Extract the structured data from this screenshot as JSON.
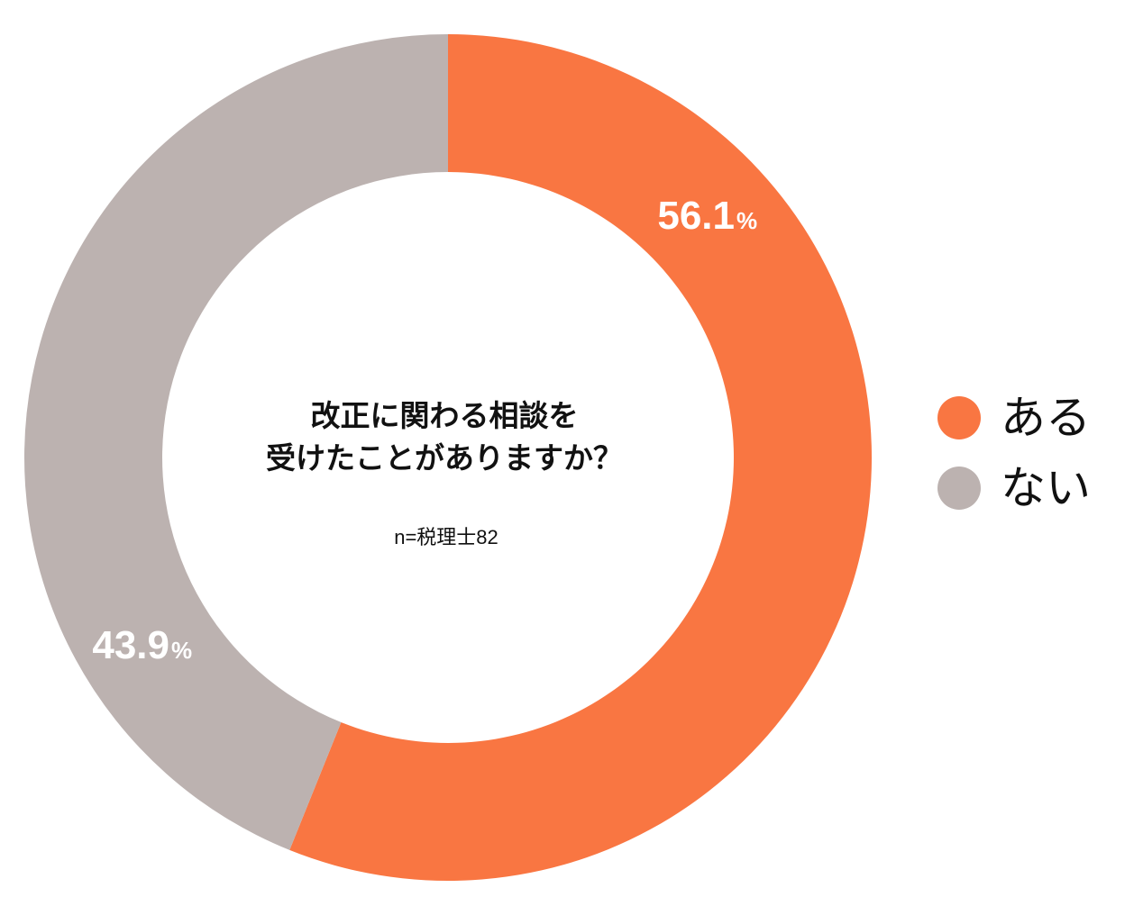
{
  "chart_data": {
    "type": "pie",
    "variant": "donut",
    "center_title_lines": [
      "改正に関わる相談を",
      "受けたことがありますか？"
    ],
    "note": "n=税理士82",
    "series": [
      {
        "name": "ある",
        "value": 56.1,
        "value_text": "56.1",
        "unit": "%",
        "color": "#F97642"
      },
      {
        "name": "ない",
        "value": 43.9,
        "value_text": "43.9",
        "unit": "%",
        "color": "#BCB2B0"
      }
    ],
    "legend_position": "right"
  }
}
